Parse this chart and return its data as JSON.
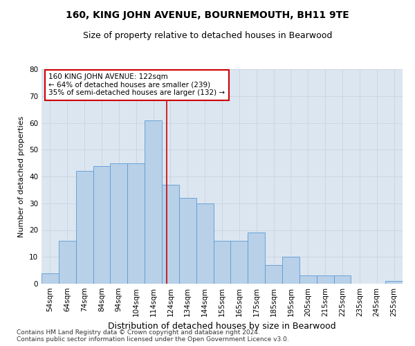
{
  "title": "160, KING JOHN AVENUE, BOURNEMOUTH, BH11 9TE",
  "subtitle": "Size of property relative to detached houses in Bearwood",
  "xlabel": "Distribution of detached houses by size in Bearwood",
  "ylabel": "Number of detached properties",
  "categories": [
    "54sqm",
    "64sqm",
    "74sqm",
    "84sqm",
    "94sqm",
    "104sqm",
    "114sqm",
    "124sqm",
    "134sqm",
    "144sqm",
    "155sqm",
    "165sqm",
    "175sqm",
    "185sqm",
    "195sqm",
    "205sqm",
    "215sqm",
    "225sqm",
    "235sqm",
    "245sqm",
    "255sqm"
  ],
  "values": [
    4,
    16,
    42,
    44,
    45,
    45,
    61,
    37,
    32,
    30,
    16,
    16,
    19,
    7,
    10,
    3,
    3,
    3,
    0,
    0,
    1
  ],
  "bar_color": "#b8d0e8",
  "bar_edge_color": "#5b9bd5",
  "vline_color": "#cc0000",
  "vline_pos": 6.8,
  "annotation_text": "160 KING JOHN AVENUE: 122sqm\n← 64% of detached houses are smaller (239)\n35% of semi-detached houses are larger (132) →",
  "annotation_box_color": "#ffffff",
  "annotation_box_edge_color": "#cc0000",
  "ylim": [
    0,
    80
  ],
  "yticks": [
    0,
    10,
    20,
    30,
    40,
    50,
    60,
    70,
    80
  ],
  "grid_color": "#c8d4e0",
  "background_color": "#dce6f0",
  "footnote": "Contains HM Land Registry data © Crown copyright and database right 2024.\nContains public sector information licensed under the Open Government Licence v3.0.",
  "title_fontsize": 10,
  "subtitle_fontsize": 9,
  "xlabel_fontsize": 9,
  "ylabel_fontsize": 8,
  "tick_fontsize": 7.5,
  "annotation_fontsize": 7.5,
  "footnote_fontsize": 6.5
}
